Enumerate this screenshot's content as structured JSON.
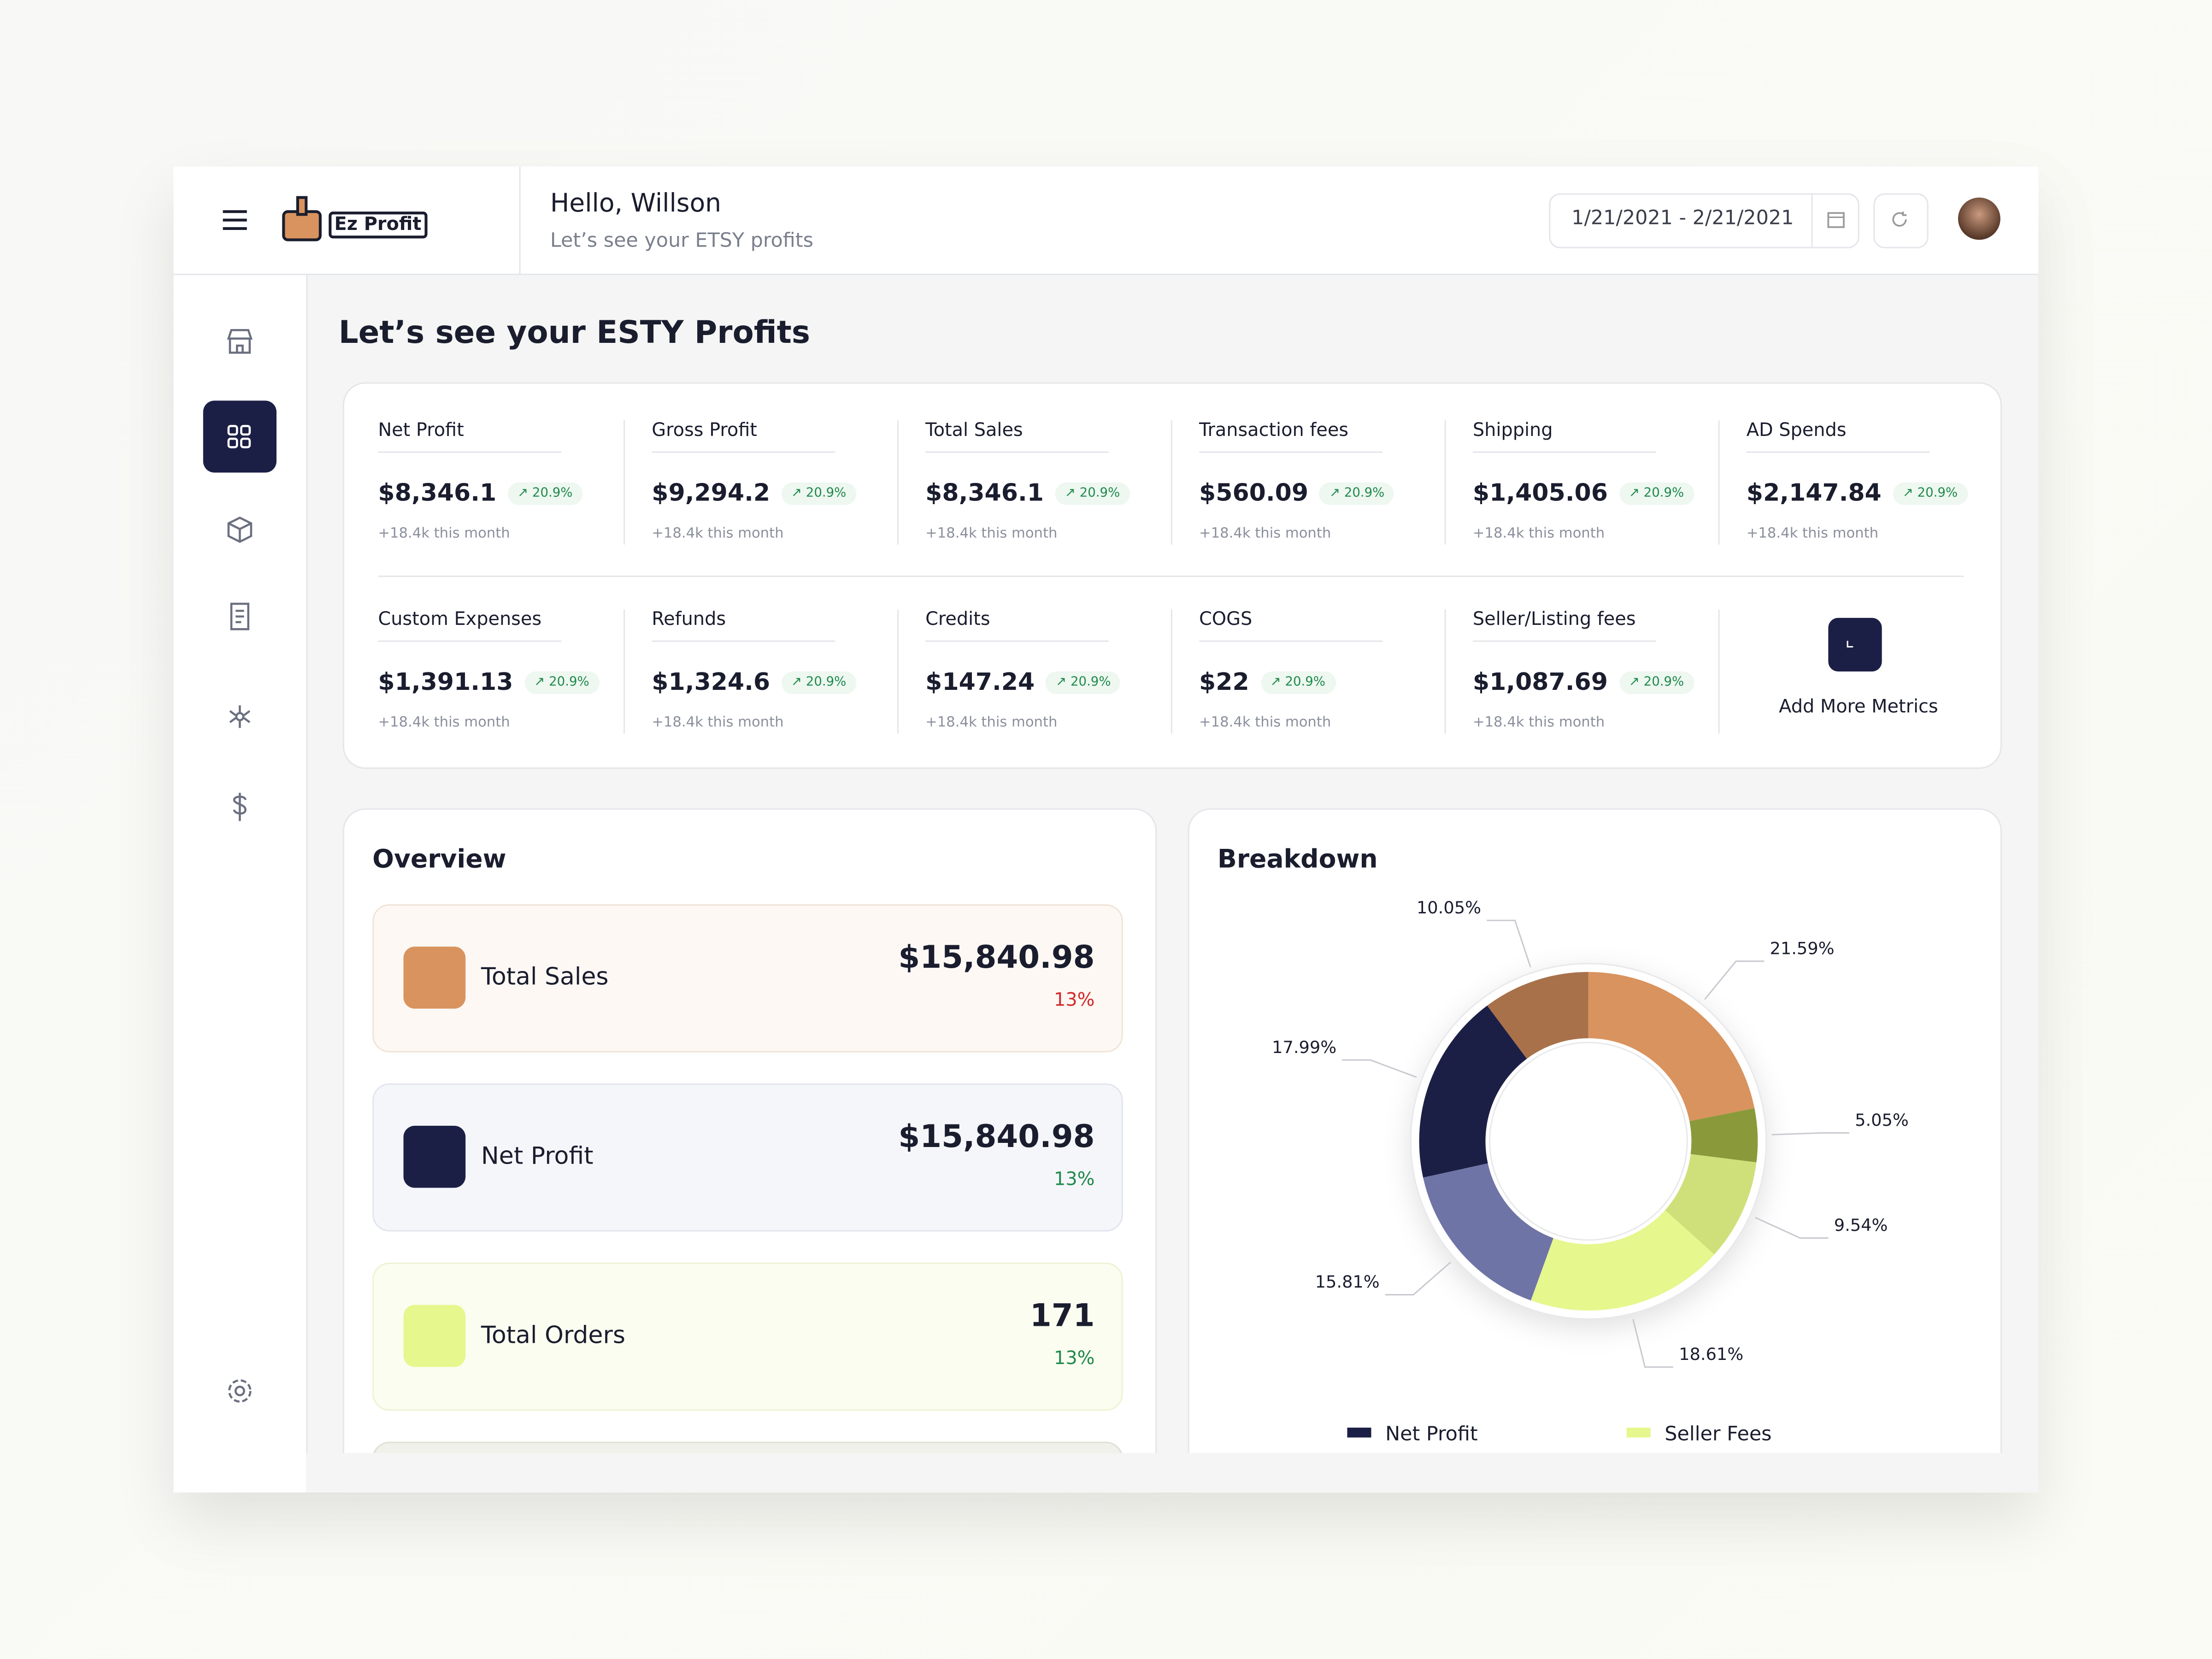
{
  "header": {
    "logo": "Ez Profit",
    "greeting": "Hello, Willson",
    "subtitle": "Let’s see your ETSY profits",
    "date_range": "1/21/2021 - 2/21/2021"
  },
  "page_title": "Let’s see your ESTY Profits",
  "metrics": {
    "items": [
      {
        "name": "Net Profit",
        "value": "$8,346.1",
        "change": "20.9%",
        "note": "+18.4k this month"
      },
      {
        "name": "Gross Profit",
        "value": "$9,294.2",
        "change": "20.9%",
        "note": "+18.4k this month"
      },
      {
        "name": "Total Sales",
        "value": "$8,346.1",
        "change": "20.9%",
        "note": "+18.4k this month"
      },
      {
        "name": "Transaction fees",
        "value": "$560.09",
        "change": "20.9%",
        "note": "+18.4k this month"
      },
      {
        "name": "Shipping",
        "value": "$1,405.06",
        "change": "20.9%",
        "note": "+18.4k this month"
      },
      {
        "name": "AD Spends",
        "value": "$2,147.84",
        "change": "20.9%",
        "note": "+18.4k this month"
      },
      {
        "name": "Custom Expenses",
        "value": "$1,391.13",
        "change": "20.9%",
        "note": "+18.4k this month"
      },
      {
        "name": "Refunds",
        "value": "$1,324.6",
        "change": "20.9%",
        "note": "+18.4k this month"
      },
      {
        "name": "Credits",
        "value": "$147.24",
        "change": "20.9%",
        "note": "+18.4k this month"
      },
      {
        "name": "COGS",
        "value": "$22",
        "change": "20.9%",
        "note": "+18.4k this month"
      },
      {
        "name": "Seller/Listing fees",
        "value": "$1,087.69",
        "change": "20.9%",
        "note": "+18.4k this month"
      }
    ],
    "add_label": "Add More Metrics"
  },
  "overview": {
    "title": "Overview",
    "items": [
      {
        "label": "Total Sales",
        "value": "$15,840.98",
        "change": "13%",
        "color": "#d12a2a",
        "accent": "#d9935e",
        "bg": "#fdf8f4",
        "border": "#f1e4d6"
      },
      {
        "label": "Net Profit",
        "value": "$15,840.98",
        "change": "13%",
        "color": "#1f8a4c",
        "accent": "#1c1f45",
        "bg": "#f5f6fa",
        "border": "#e3e5ee"
      },
      {
        "label": "Total Orders",
        "value": "171",
        "change": "13%",
        "color": "#1f8a4c",
        "accent": "#e6f78e",
        "bg": "#fbfdf0",
        "border": "#eef3d5"
      }
    ]
  },
  "chart_data": {
    "type": "pie",
    "title": "Breakdown",
    "categories": [
      "Net Profit",
      null,
      null,
      null,
      null,
      "Seller Fees",
      null
    ],
    "values": [
      17.99,
      10.05,
      21.59,
      5.05,
      9.54,
      18.61,
      15.81
    ],
    "value_labels": [
      "17.99%",
      "10.05%",
      "21.59%",
      "5.05%",
      "9.54%",
      "18.61%",
      "15.81%"
    ],
    "colors": [
      "#1c1f45",
      "#a8714a",
      "#d9935e",
      "#8a9a3a",
      "#cfe07a",
      "#e6f78e",
      "#6f74a6"
    ]
  }
}
